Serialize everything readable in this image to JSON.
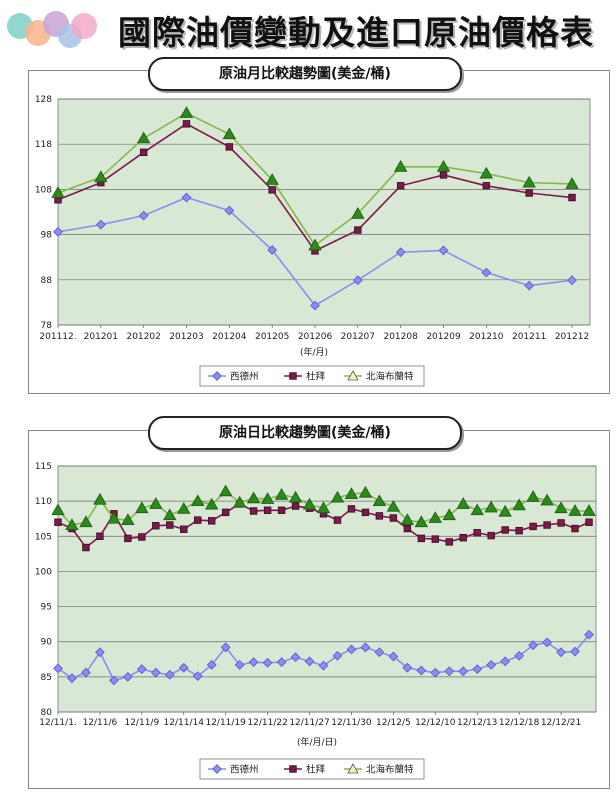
{
  "page": {
    "title": "國際油價變動及進口原油價格表"
  },
  "chart_data": [
    {
      "type": "line",
      "title": "原油月比較趨勢圖(美金/桶)",
      "xlabel": "(年/月)",
      "ylabel": "",
      "ylim": [
        78,
        128
      ],
      "yticks": [
        78,
        88,
        98,
        108,
        118,
        128
      ],
      "categories": [
        "201112.",
        "201201",
        "201202",
        "201203",
        "201204",
        "201205",
        "201206",
        "201207",
        "201208",
        "201209",
        "201210",
        "201211",
        "201212"
      ],
      "grid": true,
      "legend": "bottom",
      "series": [
        {
          "name": "西德州",
          "color": "#8c8cf2",
          "marker": "diamond",
          "values": [
            98.6,
            100.2,
            102.2,
            106.2,
            103.3,
            94.6,
            82.3,
            87.9,
            94.1,
            94.5,
            89.6,
            86.7,
            87.9
          ]
        },
        {
          "name": "杜拜",
          "color": "#7a1a48",
          "marker": "square",
          "values": [
            105.7,
            109.5,
            116.2,
            122.5,
            117.4,
            107.9,
            94.4,
            99.0,
            108.8,
            111.2,
            108.8,
            107.2,
            106.2
          ]
        },
        {
          "name": "北海布蘭特",
          "color": "#2b8a1a",
          "line": "#84b84a",
          "marker": "triangle",
          "values": [
            107.2,
            110.7,
            119.3,
            124.9,
            120.2,
            110.1,
            95.6,
            102.6,
            113.0,
            113.0,
            111.5,
            109.5,
            109.2
          ]
        }
      ]
    },
    {
      "type": "line",
      "title": "原油日比較趨勢圖(美金/桶)",
      "xlabel": "(年/月/日)",
      "ylabel": "",
      "ylim": [
        80,
        115
      ],
      "yticks": [
        80,
        85,
        90,
        95,
        100,
        105,
        110,
        115
      ],
      "categories": [
        "12/11/1.",
        "12/11/2",
        "12/11/5",
        "12/11/6",
        "12/11/7",
        "12/11/8",
        "12/11/9",
        "12/11/12",
        "12/11/13",
        "12/11/14",
        "12/11/15",
        "12/11/16",
        "12/11/19",
        "12/11/20",
        "12/11/21",
        "12/11/22",
        "12/11/23",
        "12/11/26",
        "12/11/27",
        "12/11/28",
        "12/11/29",
        "12/11/30",
        "12/12/3",
        "12/12/4",
        "12/12/5",
        "12/12/6",
        "12/12/7",
        "12/12/10",
        "12/12/11",
        "12/12/12",
        "12/12/13",
        "12/12/14",
        "12/12/17",
        "12/12/18",
        "12/12/19",
        "12/12/20",
        "12/12/21",
        "12/12/24",
        "12/12/26"
      ],
      "tick_labels": [
        "12/11/1.",
        "12/11/6",
        "12/11/9",
        "12/11/14",
        "12/11/19",
        "12/11/22",
        "12/11/27",
        "12/11/30",
        "12/12/5",
        "12/12/10",
        "12/12/13",
        "12/12/18",
        "12/12/21"
      ],
      "grid": true,
      "legend": "bottom",
      "series": [
        {
          "name": "西德州",
          "color": "#8c8cf2",
          "marker": "diamond",
          "values": [
            86.2,
            84.8,
            85.6,
            88.5,
            84.5,
            85.0,
            86.1,
            85.6,
            85.3,
            86.3,
            85.1,
            86.7,
            89.2,
            86.7,
            87.1,
            87.0,
            87.1,
            87.8,
            87.2,
            86.6,
            88.0,
            88.9,
            89.2,
            88.5,
            87.9,
            86.3,
            85.9,
            85.6,
            85.8,
            85.8,
            86.1,
            86.7,
            87.2,
            88.0,
            89.5,
            89.9,
            88.5,
            88.6,
            91.0
          ]
        },
        {
          "name": "杜拜",
          "color": "#7a1a48",
          "marker": "square",
          "values": [
            107.0,
            106.1,
            103.4,
            105.0,
            108.2,
            104.7,
            104.9,
            106.5,
            106.6,
            106.0,
            107.3,
            107.2,
            108.4,
            109.6,
            108.6,
            108.7,
            108.7,
            109.3,
            109.0,
            108.2,
            107.3,
            108.9,
            108.4,
            107.9,
            107.6,
            106.1,
            104.7,
            104.6,
            104.2,
            104.8,
            105.5,
            105.1,
            105.9,
            105.8,
            106.4,
            106.6,
            106.9,
            106.1,
            107.0
          ]
        },
        {
          "name": "北海布蘭特",
          "color": "#2b8a1a",
          "line": "#84b84a",
          "marker": "triangle",
          "values": [
            108.7,
            106.6,
            107.0,
            110.2,
            107.5,
            107.3,
            109.0,
            109.6,
            108.0,
            108.9,
            110.0,
            109.5,
            111.4,
            109.8,
            110.4,
            110.3,
            110.9,
            110.5,
            109.5,
            109.0,
            110.5,
            111.0,
            111.2,
            110.0,
            109.2,
            107.3,
            107.0,
            107.6,
            108.0,
            109.6,
            108.7,
            109.1,
            108.5,
            109.4,
            110.6,
            110.1,
            109.0,
            108.6,
            108.6
          ]
        }
      ]
    }
  ]
}
